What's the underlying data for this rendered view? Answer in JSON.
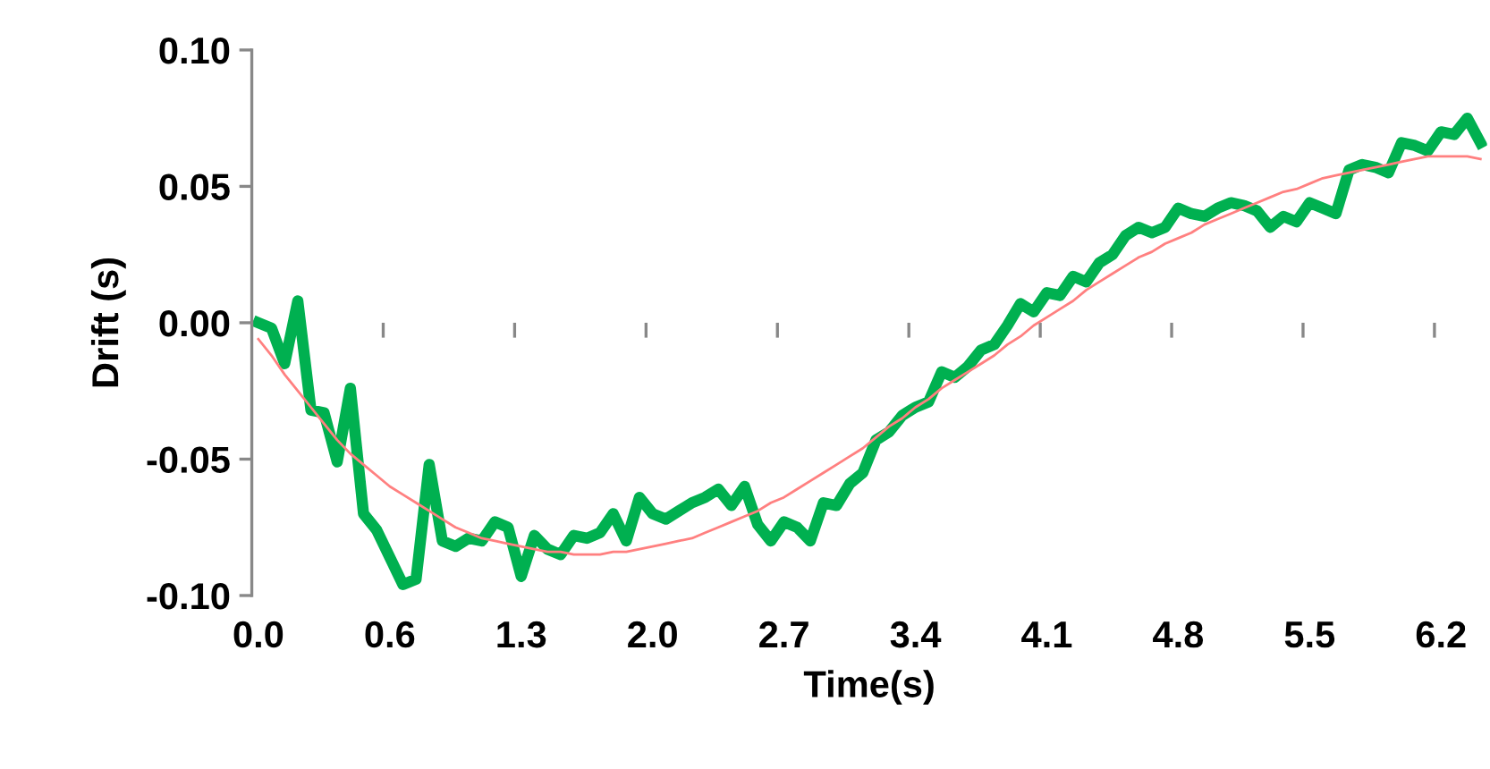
{
  "chart_data": {
    "type": "line",
    "xlabel": "Time(s)",
    "ylabel": "Drift (s)",
    "categories": [
      "0.0",
      null,
      null,
      null,
      null,
      null,
      null,
      null,
      null,
      null,
      "0.6",
      null,
      null,
      null,
      null,
      null,
      null,
      null,
      null,
      null,
      "1.3",
      null,
      null,
      null,
      null,
      null,
      null,
      null,
      null,
      null,
      "2.0",
      null,
      null,
      null,
      null,
      null,
      null,
      null,
      null,
      null,
      "2.7",
      null,
      null,
      null,
      null,
      null,
      null,
      null,
      null,
      null,
      "3.4",
      null,
      null,
      null,
      null,
      null,
      null,
      null,
      null,
      null,
      "4.1",
      null,
      null,
      null,
      null,
      null,
      null,
      null,
      null,
      null,
      "4.8",
      null,
      null,
      null,
      null,
      null,
      null,
      null,
      null,
      null,
      "5.5",
      null,
      null,
      null,
      null,
      null,
      null,
      null,
      null,
      null,
      "6.2",
      null,
      null,
      null
    ],
    "series": [
      {
        "color": "#ff8080",
        "values": [
          -0.006,
          -0.012,
          -0.019,
          -0.025,
          -0.031,
          -0.037,
          -0.043,
          -0.048,
          -0.052,
          -0.056,
          -0.06,
          -0.063,
          -0.066,
          -0.069,
          -0.072,
          -0.075,
          -0.077,
          -0.079,
          -0.08,
          -0.081,
          -0.082,
          -0.083,
          -0.084,
          -0.084,
          -0.085,
          -0.085,
          -0.085,
          -0.084,
          -0.084,
          -0.083,
          -0.082,
          -0.081,
          -0.08,
          -0.079,
          -0.077,
          -0.075,
          -0.073,
          -0.071,
          -0.069,
          -0.066,
          -0.064,
          -0.061,
          -0.058,
          -0.055,
          -0.052,
          -0.049,
          -0.046,
          -0.042,
          -0.038,
          -0.035,
          -0.031,
          -0.028,
          -0.024,
          -0.021,
          -0.018,
          -0.015,
          -0.012,
          -0.008,
          -0.005,
          -0.001,
          0.002,
          0.005,
          0.008,
          0.012,
          0.015,
          0.018,
          0.021,
          0.024,
          0.026,
          0.029,
          0.031,
          0.033,
          0.036,
          0.038,
          0.04,
          0.042,
          0.044,
          0.046,
          0.048,
          0.049,
          0.051,
          0.053,
          0.054,
          0.055,
          0.056,
          0.057,
          0.058,
          0.059,
          0.06,
          0.061,
          0.061,
          0.061,
          0.061,
          0.06
        ]
      },
      {
        "color": "#00b050",
        "values": [
          0.0,
          -0.002,
          -0.015,
          0.008,
          -0.032,
          -0.033,
          -0.051,
          -0.024,
          -0.07,
          -0.076,
          -0.086,
          -0.096,
          -0.094,
          -0.052,
          -0.08,
          -0.082,
          -0.079,
          -0.08,
          -0.073,
          -0.075,
          -0.093,
          -0.078,
          -0.083,
          -0.085,
          -0.078,
          -0.079,
          -0.077,
          -0.07,
          -0.08,
          -0.064,
          -0.07,
          -0.072,
          -0.069,
          -0.066,
          -0.064,
          -0.061,
          -0.067,
          -0.06,
          -0.074,
          -0.08,
          -0.073,
          -0.075,
          -0.08,
          -0.066,
          -0.067,
          -0.059,
          -0.055,
          -0.043,
          -0.04,
          -0.034,
          -0.031,
          -0.029,
          -0.018,
          -0.02,
          -0.016,
          -0.01,
          -0.008,
          -0.001,
          0.007,
          0.004,
          0.011,
          0.01,
          0.017,
          0.015,
          0.022,
          0.025,
          0.032,
          0.035,
          0.033,
          0.035,
          0.042,
          0.04,
          0.039,
          0.042,
          0.044,
          0.043,
          0.041,
          0.035,
          0.039,
          0.037,
          0.044,
          0.042,
          0.04,
          0.056,
          0.058,
          0.057,
          0.055,
          0.066,
          0.065,
          0.063,
          0.07,
          0.069,
          0.075,
          0.066
        ]
      }
    ],
    "ylim": [
      -0.1,
      0.1
    ],
    "yticks": [
      {
        "value": -0.1,
        "label": "-0.10"
      },
      {
        "value": -0.05,
        "label": "-0.05"
      },
      {
        "value": 0.0,
        "label": "0.00"
      },
      {
        "value": 0.05,
        "label": "0.05"
      },
      {
        "value": 0.1,
        "label": "0.10"
      }
    ],
    "grid": false,
    "legend": false,
    "marker": "none",
    "line_style": "solid"
  }
}
